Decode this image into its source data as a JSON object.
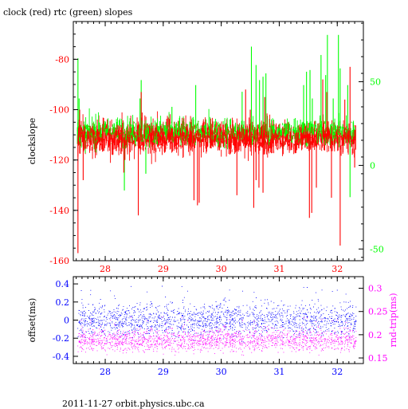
{
  "page": {
    "title": "clock (red) rtc (green) slopes",
    "footer": "2011-11-27 orbit.physics.ubc.ca"
  },
  "colors": {
    "clock": "#ff0000",
    "rtc": "#00ff00",
    "offset": "#0000ff",
    "rndtrip": "#ff00ff",
    "axis": "#000000"
  },
  "chart_data": [
    {
      "type": "line",
      "panel": "top",
      "title": "clock (red) rtc (green) slopes",
      "xlabel": "",
      "ylabel": "clockslope",
      "xlim": [
        27.45,
        32.45
      ],
      "ylim": [
        -160,
        -65
      ],
      "xticks": [
        28,
        29,
        30,
        31,
        32
      ],
      "yticks_left": [
        -160,
        -140,
        -120,
        -100,
        -80
      ],
      "y2label": "",
      "y2lim": [
        -57,
        86
      ],
      "yticks_right": [
        -50,
        0,
        50
      ],
      "grid": false,
      "series": [
        {
          "name": "clock (red)",
          "axis": "left",
          "color": "#ff0000",
          "baseline": -111,
          "noise": 2.5,
          "x_range": [
            27.52,
            32.32
          ],
          "spikes": [
            {
              "x": 27.53,
              "y": -157
            },
            {
              "x": 27.56,
              "y": -100
            },
            {
              "x": 27.62,
              "y": -128
            },
            {
              "x": 28.32,
              "y": -125
            },
            {
              "x": 28.34,
              "y": -120
            },
            {
              "x": 28.57,
              "y": -142
            },
            {
              "x": 28.62,
              "y": -93
            },
            {
              "x": 29.53,
              "y": -136
            },
            {
              "x": 29.59,
              "y": -138
            },
            {
              "x": 29.62,
              "y": -137
            },
            {
              "x": 30.27,
              "y": -134
            },
            {
              "x": 30.42,
              "y": -92
            },
            {
              "x": 30.5,
              "y": -100
            },
            {
              "x": 30.56,
              "y": -139
            },
            {
              "x": 30.6,
              "y": -128
            },
            {
              "x": 30.65,
              "y": -131
            },
            {
              "x": 30.72,
              "y": -133
            },
            {
              "x": 30.75,
              "y": -95
            },
            {
              "x": 31.52,
              "y": -143
            },
            {
              "x": 31.56,
              "y": -141
            },
            {
              "x": 31.64,
              "y": -131
            },
            {
              "x": 31.75,
              "y": -88
            },
            {
              "x": 31.82,
              "y": -93
            },
            {
              "x": 31.9,
              "y": -135
            },
            {
              "x": 32.05,
              "y": -154
            },
            {
              "x": 32.13,
              "y": -96
            },
            {
              "x": 32.22,
              "y": -83
            },
            {
              "x": 32.3,
              "y": -123
            }
          ]
        },
        {
          "name": "rtc (green)",
          "axis": "right",
          "color": "#00ff00",
          "baseline": 20,
          "noise": 3,
          "x_range": [
            27.52,
            32.32
          ],
          "spikes": [
            {
              "x": 27.53,
              "y": 64
            },
            {
              "x": 27.55,
              "y": 40
            },
            {
              "x": 28.33,
              "y": -15
            },
            {
              "x": 28.6,
              "y": 40
            },
            {
              "x": 28.62,
              "y": 51
            },
            {
              "x": 28.7,
              "y": -5
            },
            {
              "x": 29.15,
              "y": 35
            },
            {
              "x": 29.56,
              "y": 48
            },
            {
              "x": 30.36,
              "y": 44
            },
            {
              "x": 30.52,
              "y": 71
            },
            {
              "x": 30.6,
              "y": 60
            },
            {
              "x": 30.66,
              "y": 51
            },
            {
              "x": 30.72,
              "y": 53
            },
            {
              "x": 30.77,
              "y": 55
            },
            {
              "x": 31.42,
              "y": 48
            },
            {
              "x": 31.47,
              "y": 56
            },
            {
              "x": 31.53,
              "y": 57
            },
            {
              "x": 31.57,
              "y": 40
            },
            {
              "x": 31.72,
              "y": 66
            },
            {
              "x": 31.8,
              "y": 54
            },
            {
              "x": 31.83,
              "y": 78
            },
            {
              "x": 31.93,
              "y": 40
            },
            {
              "x": 32.02,
              "y": 78
            },
            {
              "x": 32.05,
              "y": 58
            },
            {
              "x": 32.18,
              "y": 48
            },
            {
              "x": 32.22,
              "y": -19
            }
          ]
        }
      ]
    },
    {
      "type": "scatter",
      "panel": "bottom",
      "xlabel": "",
      "ylabel": "offset(ms)",
      "xlim": [
        27.45,
        32.45
      ],
      "ylim": [
        -0.48,
        0.48
      ],
      "xticks": [
        28,
        29,
        30,
        31,
        32
      ],
      "yticks_left": [
        -0.4,
        -0.2,
        0,
        0.2,
        0.4
      ],
      "y2label": "rnd-trip(ms)",
      "y2lim": [
        0.138,
        0.325
      ],
      "yticks_right": [
        0.15,
        0.2,
        0.25,
        0.3
      ],
      "grid": false,
      "series": [
        {
          "name": "offset(ms)",
          "axis": "left",
          "color": "#0000ff",
          "baseline": 0.0,
          "noise": 0.09,
          "x_range": [
            27.52,
            32.32
          ]
        },
        {
          "name": "rnd-trip(ms)",
          "axis": "right",
          "color": "#ff00ff",
          "baseline": 0.188,
          "noise": 0.012,
          "x_range": [
            27.52,
            32.32
          ]
        }
      ]
    }
  ]
}
